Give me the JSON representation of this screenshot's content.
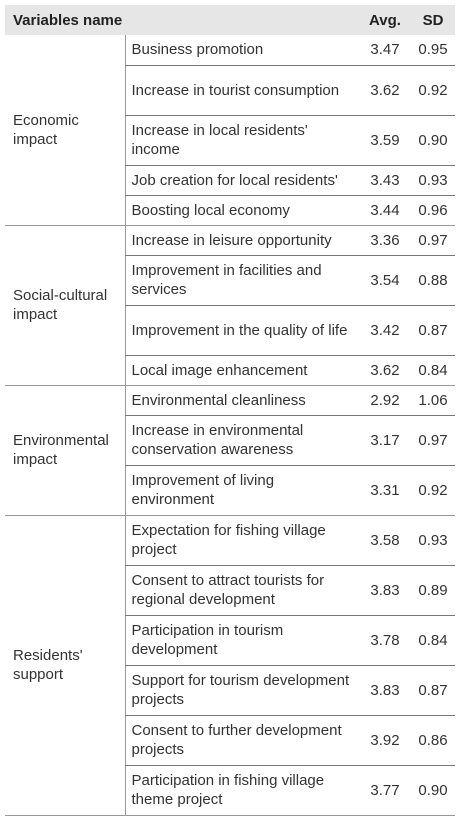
{
  "table": {
    "headers": {
      "name": "Variables name",
      "avg": "Avg.",
      "sd": "SD"
    },
    "groups": [
      {
        "label": "Economic impact",
        "rows": [
          {
            "item": "Business promotion",
            "avg": "3.47",
            "sd": "0.95"
          },
          {
            "item": "Increase in tourist consumption",
            "avg": "3.62",
            "sd": "0.92"
          },
          {
            "item": "Increase in local residents' income",
            "avg": "3.59",
            "sd": "0.90"
          },
          {
            "item": "Job creation for local residents'",
            "avg": "3.43",
            "sd": "0.93"
          },
          {
            "item": "Boosting local economy",
            "avg": "3.44",
            "sd": "0.96"
          }
        ]
      },
      {
        "label": "Social-cultural impact",
        "rows": [
          {
            "item": "Increase in leisure opportunity",
            "avg": "3.36",
            "sd": "0.97"
          },
          {
            "item": "Improvement in facilities and services",
            "avg": "3.54",
            "sd": "0.88"
          },
          {
            "item": "Improvement in the quality of life",
            "avg": "3.42",
            "sd": "0.87"
          },
          {
            "item": "Local image enhancement",
            "avg": "3.62",
            "sd": "0.84"
          }
        ]
      },
      {
        "label": "Environmental impact",
        "rows": [
          {
            "item": "Environmental cleanliness",
            "avg": "2.92",
            "sd": "1.06"
          },
          {
            "item": "Increase in environmental conservation awareness",
            "avg": "3.17",
            "sd": "0.97"
          },
          {
            "item": "Improvement of living environment",
            "avg": "3.31",
            "sd": "0.92"
          }
        ]
      },
      {
        "label": "Residents' support",
        "rows": [
          {
            "item": "Expectation for fishing village project",
            "avg": "3.58",
            "sd": "0.93"
          },
          {
            "item": "Consent to attract tourists for regional development",
            "avg": "3.83",
            "sd": "0.89"
          },
          {
            "item": "Participation in tourism development",
            "avg": "3.78",
            "sd": "0.84"
          },
          {
            "item": "Support for tourism development projects",
            "avg": "3.83",
            "sd": "0.87"
          },
          {
            "item": "Consent to further development projects",
            "avg": "3.92",
            "sd": "0.86"
          },
          {
            "item": "Participation in fishing village theme project",
            "avg": "3.77",
            "sd": "0.90"
          }
        ]
      }
    ]
  }
}
